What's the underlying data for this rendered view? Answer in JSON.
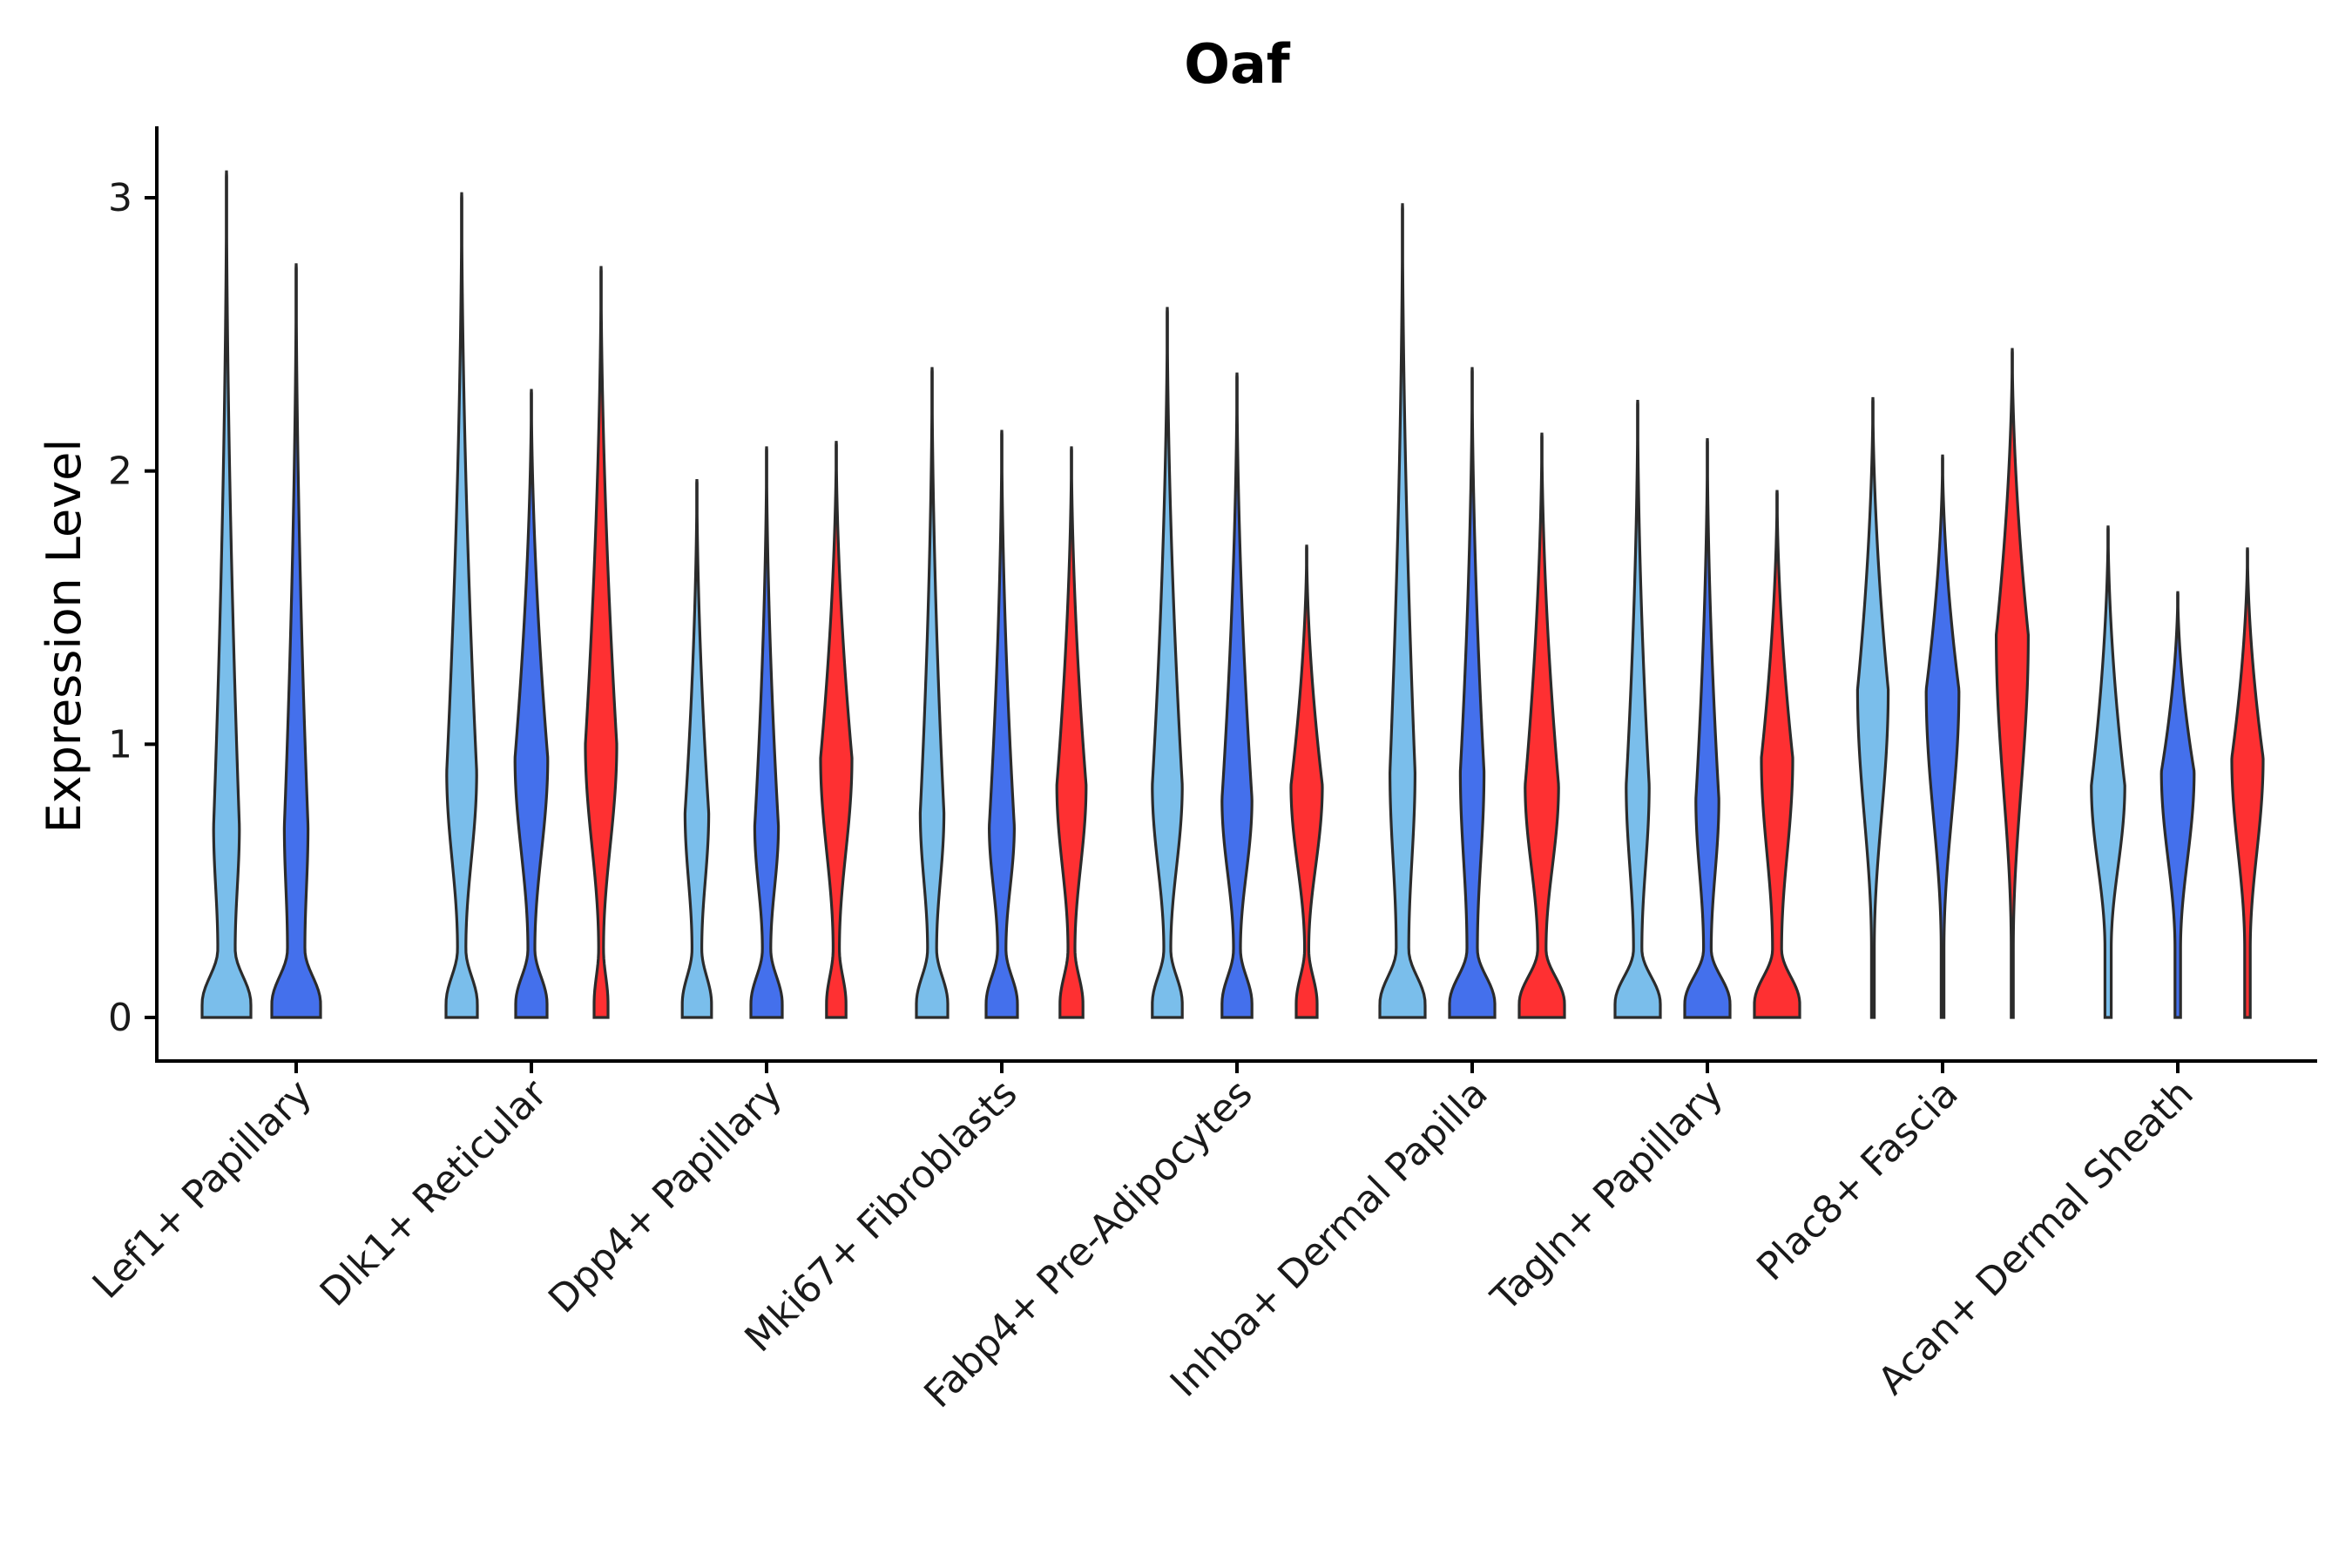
{
  "chart_data": {
    "type": "violin",
    "title": "Oaf",
    "xlabel": "",
    "ylabel": "Expression Level",
    "ylim": [
      -0.15,
      3.27
    ],
    "yticks": [
      0,
      1,
      2,
      3
    ],
    "grid": false,
    "legend": "none",
    "series_colors": [
      "#7ABEEB",
      "#4470EC",
      "#FE3032"
    ],
    "categories": [
      "Lef1+ Papillary",
      "Dlk1+ Reticular",
      "Dpp4+ Papillary",
      "Mki67+ Fibroblasts",
      "Fabp4+ Pre-Adipocytes",
      "Inhba+ Dermal Papilla",
      "Tagln+ Papillary",
      "Plac8+ Fascia",
      "Acan+ Dermal Sheath"
    ],
    "violins": [
      [
        {
          "max": 3.1,
          "mid": 0.7,
          "body": 0.37,
          "lowNeck": 0.25,
          "baseMax": 0.7
        },
        {
          "max": 2.76,
          "mid": 0.7,
          "body": 0.34,
          "lowNeck": 0.25,
          "baseMax": 0.7
        },
        null
      ],
      [
        {
          "max": 3.02,
          "mid": 0.9,
          "body": 0.43,
          "lowNeck": 0.12,
          "baseMax": 0.45
        },
        {
          "max": 2.3,
          "mid": 0.95,
          "body": 0.47,
          "lowNeck": 0.1,
          "baseMax": 0.45
        },
        {
          "max": 2.75,
          "mid": 1.0,
          "body": 0.45,
          "lowNeck": 0.07,
          "baseMax": 0.2
        }
      ],
      [
        {
          "max": 1.97,
          "mid": 0.75,
          "body": 0.34,
          "lowNeck": 0.14,
          "baseMax": 0.42
        },
        {
          "max": 2.09,
          "mid": 0.7,
          "body": 0.34,
          "lowNeck": 0.12,
          "baseMax": 0.45
        },
        {
          "max": 2.11,
          "mid": 0.95,
          "body": 0.45,
          "lowNeck": 0.09,
          "baseMax": 0.28
        }
      ],
      [
        {
          "max": 2.38,
          "mid": 0.75,
          "body": 0.34,
          "lowNeck": 0.13,
          "baseMax": 0.45
        },
        {
          "max": 2.15,
          "mid": 0.7,
          "body": 0.36,
          "lowNeck": 0.12,
          "baseMax": 0.45
        },
        {
          "max": 2.09,
          "mid": 0.85,
          "body": 0.42,
          "lowNeck": 0.1,
          "baseMax": 0.33
        }
      ],
      [
        {
          "max": 2.6,
          "mid": 0.85,
          "body": 0.43,
          "lowNeck": 0.1,
          "baseMax": 0.43
        },
        {
          "max": 2.36,
          "mid": 0.8,
          "body": 0.43,
          "lowNeck": 0.1,
          "baseMax": 0.43
        },
        {
          "max": 1.73,
          "mid": 0.85,
          "body": 0.45,
          "lowNeck": 0.06,
          "baseMax": 0.3
        }
      ],
      [
        {
          "max": 2.98,
          "mid": 0.9,
          "body": 0.36,
          "lowNeck": 0.18,
          "baseMax": 0.65
        },
        {
          "max": 2.38,
          "mid": 0.9,
          "body": 0.34,
          "lowNeck": 0.15,
          "baseMax": 0.65
        },
        {
          "max": 2.14,
          "mid": 0.85,
          "body": 0.48,
          "lowNeck": 0.12,
          "baseMax": 0.65
        }
      ],
      [
        {
          "max": 2.26,
          "mid": 0.85,
          "body": 0.33,
          "lowNeck": 0.12,
          "baseMax": 0.65
        },
        {
          "max": 2.12,
          "mid": 0.8,
          "body": 0.33,
          "lowNeck": 0.11,
          "baseMax": 0.65
        },
        {
          "max": 1.93,
          "mid": 0.95,
          "body": 0.45,
          "lowNeck": 0.13,
          "baseMax": 0.65
        }
      ],
      [
        {
          "max": 2.27,
          "mid": 1.2,
          "body": 0.44,
          "lowNeck": 0.04,
          "baseMax": 0.04
        },
        {
          "max": 2.06,
          "mid": 1.2,
          "body": 0.47,
          "lowNeck": 0.04,
          "baseMax": 0.04
        },
        {
          "max": 2.45,
          "mid": 1.4,
          "body": 0.46,
          "lowNeck": 0.03,
          "baseMax": 0.03
        }
      ],
      [
        {
          "max": 1.8,
          "mid": 0.85,
          "body": 0.48,
          "lowNeck": 0.09,
          "baseMax": 0.09
        },
        {
          "max": 1.56,
          "mid": 0.9,
          "body": 0.47,
          "lowNeck": 0.08,
          "baseMax": 0.08
        },
        {
          "max": 1.72,
          "mid": 0.95,
          "body": 0.45,
          "lowNeck": 0.08,
          "baseMax": 0.08
        }
      ]
    ]
  }
}
